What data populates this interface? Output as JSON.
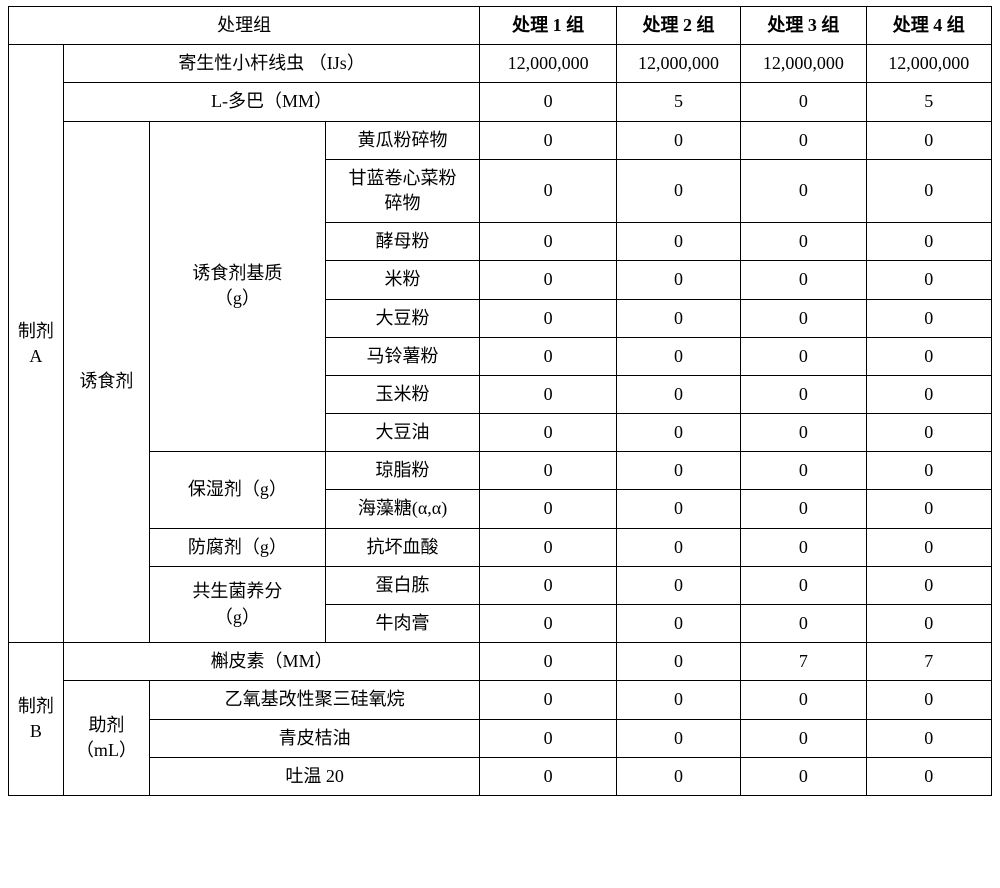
{
  "header": {
    "group_label": "处理组",
    "g1": "处理 1 组",
    "g2": "处理 2 组",
    "g3": "处理 3 组",
    "g4": "处理 4 组"
  },
  "prepA": {
    "label": "制剂\nA",
    "nematode": {
      "label": "寄生性小杆线虫 （IJs）",
      "v": [
        "12,000,000",
        "12,000,000",
        "12,000,000",
        "12,000,000"
      ]
    },
    "ldopa": {
      "label": "L-多巴（MM）",
      "v": [
        "0",
        "5",
        "0",
        "5"
      ]
    },
    "attractant": {
      "label": "诱食剂",
      "matrix": {
        "label": "诱食剂基质\n（g）",
        "rows": [
          {
            "name": "黄瓜粉碎物",
            "v": [
              "0",
              "0",
              "0",
              "0"
            ]
          },
          {
            "name": "甘蓝卷心菜粉\n碎物",
            "v": [
              "0",
              "0",
              "0",
              "0"
            ]
          },
          {
            "name": "酵母粉",
            "v": [
              "0",
              "0",
              "0",
              "0"
            ]
          },
          {
            "name": "米粉",
            "v": [
              "0",
              "0",
              "0",
              "0"
            ]
          },
          {
            "name": "大豆粉",
            "v": [
              "0",
              "0",
              "0",
              "0"
            ]
          },
          {
            "name": "马铃薯粉",
            "v": [
              "0",
              "0",
              "0",
              "0"
            ]
          },
          {
            "name": "玉米粉",
            "v": [
              "0",
              "0",
              "0",
              "0"
            ]
          },
          {
            "name": "大豆油",
            "v": [
              "0",
              "0",
              "0",
              "0"
            ]
          }
        ]
      },
      "humectant": {
        "label": "保湿剂（g）",
        "rows": [
          {
            "name": "琼脂粉",
            "v": [
              "0",
              "0",
              "0",
              "0"
            ]
          },
          {
            "name": "海藻糖(α,α)",
            "v": [
              "0",
              "0",
              "0",
              "0"
            ]
          }
        ]
      },
      "preservative": {
        "label": "防腐剂（g）",
        "rows": [
          {
            "name": "抗坏血酸",
            "v": [
              "0",
              "0",
              "0",
              "0"
            ]
          }
        ]
      },
      "nutrient": {
        "label": "共生菌养分\n（g）",
        "rows": [
          {
            "name": "蛋白胨",
            "v": [
              "0",
              "0",
              "0",
              "0"
            ]
          },
          {
            "name": "牛肉膏",
            "v": [
              "0",
              "0",
              "0",
              "0"
            ]
          }
        ]
      }
    }
  },
  "prepB": {
    "label": "制剂\nB",
    "quercetin": {
      "label": "槲皮素（MM）",
      "v": [
        "0",
        "0",
        "7",
        "7"
      ]
    },
    "adjuvant": {
      "label": "助剂\n（mL）",
      "rows": [
        {
          "name": "乙氧基改性聚三硅氧烷",
          "v": [
            "0",
            "0",
            "0",
            "0"
          ]
        },
        {
          "name": "青皮桔油",
          "v": [
            "0",
            "0",
            "0",
            "0"
          ]
        },
        {
          "name": "吐温 20",
          "v": [
            "0",
            "0",
            "0",
            "0"
          ]
        }
      ]
    }
  }
}
